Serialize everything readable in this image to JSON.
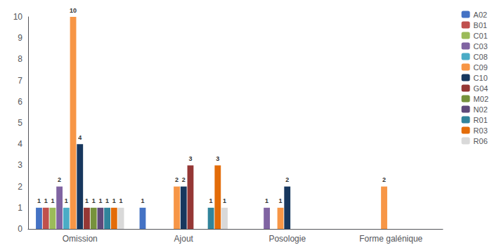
{
  "chart_data": {
    "type": "bar",
    "categories": [
      "Omission",
      "Ajout",
      "Posologie",
      "Forme galénique"
    ],
    "series": [
      {
        "name": "A02",
        "color": "#4472C4",
        "values": [
          1,
          1,
          0,
          0
        ]
      },
      {
        "name": "B01",
        "color": "#C0504D",
        "values": [
          1,
          0,
          0,
          0
        ]
      },
      {
        "name": "C01",
        "color": "#9BBB59",
        "values": [
          1,
          0,
          0,
          0
        ]
      },
      {
        "name": "C03",
        "color": "#8064A2",
        "values": [
          2,
          0,
          1,
          0
        ]
      },
      {
        "name": "C08",
        "color": "#4BACC6",
        "values": [
          1,
          0,
          0,
          0
        ]
      },
      {
        "name": "C09",
        "color": "#F79646",
        "values": [
          10,
          2,
          1,
          2
        ]
      },
      {
        "name": "C10",
        "color": "#17375E",
        "values": [
          4,
          2,
          2,
          0
        ]
      },
      {
        "name": "G04",
        "color": "#953735",
        "values": [
          1,
          3,
          0,
          0
        ]
      },
      {
        "name": "M02",
        "color": "#76923C",
        "values": [
          1,
          0,
          0,
          0
        ]
      },
      {
        "name": "N02",
        "color": "#5F497A",
        "values": [
          1,
          0,
          0,
          0
        ]
      },
      {
        "name": "R01",
        "color": "#31849B",
        "values": [
          1,
          1,
          0,
          0
        ]
      },
      {
        "name": "R03",
        "color": "#E36C09",
        "values": [
          1,
          3,
          0,
          0
        ]
      },
      {
        "name": "R06",
        "color": "#D9D9D9",
        "values": [
          1,
          1,
          0,
          0
        ]
      }
    ],
    "ylim": [
      0,
      10
    ],
    "yticks": [
      0,
      1,
      2,
      3,
      4,
      5,
      6,
      7,
      8,
      9,
      10
    ],
    "grid": false,
    "legend": "right",
    "data_labels": true
  }
}
